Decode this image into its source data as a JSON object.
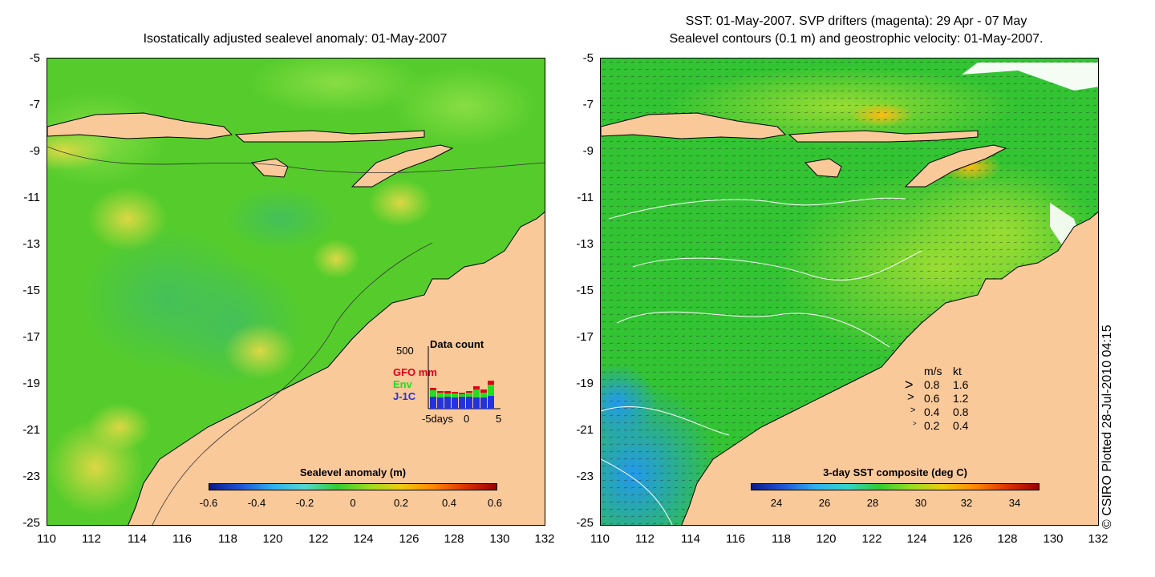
{
  "left_panel": {
    "title": "Isostatically adjusted sealevel anomaly: 01-May-2007",
    "colorbar": {
      "title": "Sealevel anomaly (m)",
      "ticks": [
        "-0.6",
        "-0.4",
        "-0.2",
        "0",
        "0.2",
        "0.4",
        "0.6"
      ]
    },
    "inset": {
      "title": "Data count",
      "ymax_label": "500",
      "series": [
        {
          "name": "GFO mm",
          "color": "#e0001a"
        },
        {
          "name": "Env",
          "color": "#22dd22"
        },
        {
          "name": "J-1C",
          "color": "#2233dd"
        }
      ],
      "x_labels": [
        "-5days",
        "0",
        "5"
      ]
    }
  },
  "right_panel": {
    "title_line1": "SST: 01-May-2007. SVP drifters (magenta): 29 Apr - 07 May",
    "title_line2": "Sealevel contours (0.1 m) and geostrophic velocity: 01-May-2007.",
    "colorbar": {
      "title": "3-day SST composite (deg C)",
      "ticks": [
        "24",
        "26",
        "28",
        "30",
        "32",
        "34"
      ]
    },
    "velocity_legend": {
      "header": [
        "m/s",
        "kt"
      ],
      "rows": [
        [
          "0.8",
          "1.6"
        ],
        [
          "0.6",
          "1.2"
        ],
        [
          "0.4",
          "0.8"
        ],
        [
          "0.2",
          "0.4"
        ]
      ]
    }
  },
  "axes": {
    "y_ticks": [
      "-5",
      "-7",
      "-9",
      "-11",
      "-13",
      "-15",
      "-17",
      "-19",
      "-21",
      "-23",
      "-25"
    ],
    "x_ticks": [
      "110",
      "112",
      "114",
      "116",
      "118",
      "120",
      "122",
      "124",
      "126",
      "128",
      "130",
      "132"
    ]
  },
  "credit": "© CSIRO Plotted 28-Jul-2010 04:15",
  "colors": {
    "land": "#f9c99a",
    "ocean_green": "#22cc22",
    "ocean_light": "#66dd33"
  }
}
